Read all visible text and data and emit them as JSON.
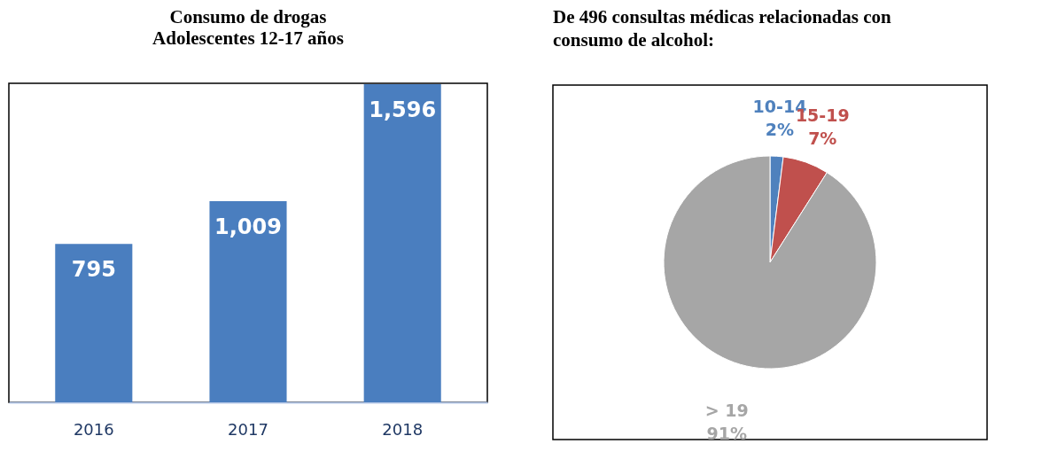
{
  "chart_data": [
    {
      "type": "bar",
      "title": "Consumo de drogas",
      "subtitle": "Adolescentes 12-17 años",
      "categories": [
        "2016",
        "2017",
        "2018"
      ],
      "values": [
        795,
        1009,
        1596
      ],
      "value_labels": [
        "795",
        "1,009",
        "1,596"
      ],
      "color": "#4a7ebf",
      "tick_labels": "x"
    },
    {
      "type": "pie",
      "title": "De 496 consultas médicas relacionadas con consumo de alcohol:",
      "categories": [
        "10-14",
        "15-19",
        "> 19"
      ],
      "values": [
        2,
        7,
        91
      ],
      "value_labels": [
        "2%",
        "7%",
        "91%"
      ],
      "colors": [
        "#4f81bd",
        "#c0504d",
        "#a6a6a6"
      ]
    }
  ]
}
